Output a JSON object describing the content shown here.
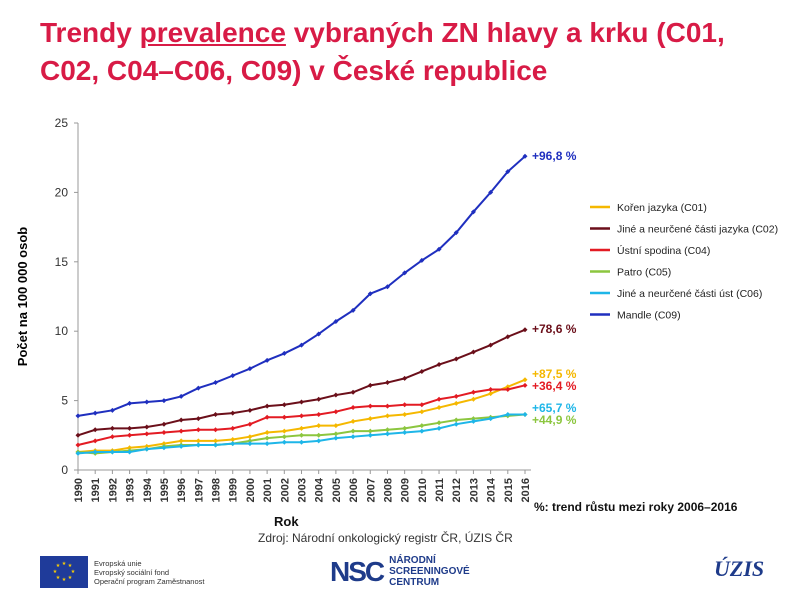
{
  "slide": {
    "title_part1": "Trendy ",
    "title_underlined": "prevalence",
    "title_part2": " vybraných ZN hlavy a krku (C01, C02, C04–C06, C09) v České republice",
    "footnote": "%: trend růstu mezi roky 2006–2016",
    "source": "Zdroj: Národní onkologický registr ČR, ÚZIS ČR",
    "eu_line1": "Evropská unie",
    "eu_line2": "Evropský sociální fond",
    "eu_line3": "Operační program Zaměstnanost",
    "nsc_mark": "NSC",
    "nsc_line1": "NÁRODNÍ",
    "nsc_line2": "SCREENINGOVÉ",
    "nsc_line3": "CENTRUM",
    "uzis_logo": "ÚZIS"
  },
  "chart_data": {
    "type": "line",
    "xlabel": "Rok",
    "ylabel": "Počet na 100 000 osob",
    "ylim": [
      0,
      25
    ],
    "yticks": [
      0,
      5,
      10,
      15,
      20,
      25
    ],
    "grid": false,
    "legend_position": "right",
    "x": [
      1990,
      1991,
      1992,
      1993,
      1994,
      1995,
      1996,
      1997,
      1998,
      1999,
      2000,
      2001,
      2002,
      2003,
      2004,
      2005,
      2006,
      2007,
      2008,
      2009,
      2010,
      2011,
      2012,
      2013,
      2014,
      2015,
      2016
    ],
    "series": [
      {
        "name": "Kořen jazyka (C01)",
        "color": "#f5b800",
        "annotation": "+87,5 %",
        "values": [
          1.3,
          1.4,
          1.4,
          1.6,
          1.7,
          1.9,
          2.1,
          2.1,
          2.1,
          2.2,
          2.4,
          2.7,
          2.8,
          3.0,
          3.2,
          3.2,
          3.5,
          3.7,
          3.9,
          4.0,
          4.2,
          4.5,
          4.8,
          5.1,
          5.5,
          6.0,
          6.5
        ]
      },
      {
        "name": "Jiné a neurčené části jazyka (C02)",
        "color": "#6b0f1a",
        "annotation": "+78,6 %",
        "values": [
          2.5,
          2.9,
          3.0,
          3.0,
          3.1,
          3.3,
          3.6,
          3.7,
          4.0,
          4.1,
          4.3,
          4.6,
          4.7,
          4.9,
          5.1,
          5.4,
          5.6,
          6.1,
          6.3,
          6.6,
          7.1,
          7.6,
          8.0,
          8.5,
          9.0,
          9.6,
          10.1
        ]
      },
      {
        "name": "Ústní spodina (C04)",
        "color": "#e31b23",
        "annotation": "+36,4 %",
        "values": [
          1.8,
          2.1,
          2.4,
          2.5,
          2.6,
          2.7,
          2.8,
          2.9,
          2.9,
          3.0,
          3.3,
          3.8,
          3.8,
          3.9,
          4.0,
          4.2,
          4.5,
          4.6,
          4.6,
          4.7,
          4.7,
          5.1,
          5.3,
          5.6,
          5.8,
          5.8,
          6.1
        ]
      },
      {
        "name": "Patro (C05)",
        "color": "#8cc63f",
        "annotation": "+44,9 %",
        "values": [
          1.3,
          1.2,
          1.3,
          1.4,
          1.5,
          1.7,
          1.8,
          1.8,
          1.8,
          1.9,
          2.1,
          2.3,
          2.4,
          2.5,
          2.5,
          2.6,
          2.8,
          2.8,
          2.9,
          3.0,
          3.2,
          3.4,
          3.6,
          3.7,
          3.8,
          3.9,
          4.0
        ]
      },
      {
        "name": "Jiné a neurčené části úst (C06)",
        "color": "#1eb6e8",
        "annotation": "+65,7 %",
        "values": [
          1.2,
          1.3,
          1.3,
          1.3,
          1.5,
          1.6,
          1.7,
          1.8,
          1.8,
          1.9,
          1.9,
          1.9,
          2.0,
          2.0,
          2.1,
          2.3,
          2.4,
          2.5,
          2.6,
          2.7,
          2.8,
          3.0,
          3.3,
          3.5,
          3.7,
          4.0,
          4.0
        ]
      },
      {
        "name": "Mandle (C09)",
        "color": "#1f2fbf",
        "annotation": "+96,8 %",
        "values": [
          3.9,
          4.1,
          4.3,
          4.8,
          4.9,
          5.0,
          5.3,
          5.9,
          6.3,
          6.8,
          7.3,
          7.9,
          8.4,
          9.0,
          9.8,
          10.7,
          11.5,
          12.7,
          13.2,
          14.2,
          15.1,
          15.9,
          17.1,
          18.6,
          20.0,
          21.5,
          22.6
        ]
      }
    ]
  }
}
